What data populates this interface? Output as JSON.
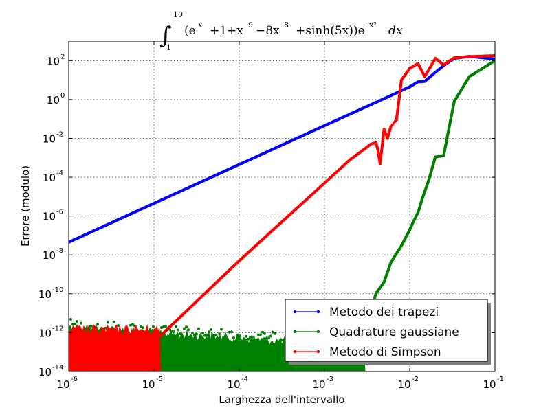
{
  "chart_data": {
    "type": "line",
    "title": {
      "integral": "∫",
      "upper": "10",
      "lower": "1",
      "integrand": "(e",
      "exp_x": "x",
      "mid": "+1+x",
      "exp_9": "9",
      "mid2": "−8x",
      "exp_8": "8",
      "tail": "+sinh(5x))e",
      "exp_tail": "−x²",
      "dx": "dx"
    },
    "xlabel": "Larghezza dell'intervallo",
    "ylabel": "Errore (modulo)",
    "x_scale": "log",
    "y_scale": "log",
    "xlim": [
      1e-06,
      0.1
    ],
    "ylim": [
      1e-14,
      1000
    ],
    "grid": true,
    "legend_position": "lower-right",
    "x_ticks": [
      {
        "base": "10",
        "exp": "-6"
      },
      {
        "base": "10",
        "exp": "-5"
      },
      {
        "base": "10",
        "exp": "-4"
      },
      {
        "base": "10",
        "exp": "-3"
      },
      {
        "base": "10",
        "exp": "-2"
      },
      {
        "base": "10",
        "exp": "-1"
      }
    ],
    "y_ticks": [
      {
        "base": "10",
        "exp": "-14"
      },
      {
        "base": "10",
        "exp": "-12"
      },
      {
        "base": "10",
        "exp": "-10"
      },
      {
        "base": "10",
        "exp": "-8"
      },
      {
        "base": "10",
        "exp": "-6"
      },
      {
        "base": "10",
        "exp": "-4"
      },
      {
        "base": "10",
        "exp": "-2"
      },
      {
        "base": "10",
        "exp": "0"
      },
      {
        "base": "10",
        "exp": "2"
      }
    ],
    "series": [
      {
        "name": "Metodo dei trapezi",
        "color": "#0000ff",
        "x": [
          1e-06,
          1e-05,
          0.0001,
          0.001,
          0.005,
          0.01,
          0.0125,
          0.015,
          0.02,
          0.025,
          0.0333,
          0.05,
          0.1
        ],
        "y": [
          4.5e-08,
          4.5e-06,
          0.00045,
          0.045,
          1.1,
          4.5,
          8,
          8.5,
          25,
          55,
          130,
          165,
          120
        ]
      },
      {
        "name": "Quadrature gaussiane",
        "color": "#008000",
        "x": [
          0.0035,
          0.004,
          0.005,
          0.006,
          0.007,
          0.008,
          0.009,
          0.01,
          0.011,
          0.0125,
          0.0143,
          0.0167,
          0.02,
          0.025,
          0.0333,
          0.05,
          0.1
        ],
        "y": [
          1e-11,
          1e-10,
          4e-10,
          4e-09,
          1.2e-08,
          3e-08,
          8e-08,
          2e-07,
          5e-07,
          1.5e-06,
          1e-05,
          7e-05,
          0.0011,
          0.0013,
          0.8,
          15,
          100
        ]
      },
      {
        "name": "Metodo di Simpson",
        "color": "#ff0000",
        "x": [
          1.2e-05,
          0.0001,
          0.001,
          0.002,
          0.003,
          0.0035,
          0.004,
          0.0042,
          0.0045,
          0.005,
          0.0055,
          0.006,
          0.0065,
          0.007,
          0.008,
          0.01,
          0.0125,
          0.015,
          0.02,
          0.025,
          0.0333,
          0.05,
          0.1
        ],
        "y": [
          7e-13,
          5e-09,
          5e-05,
          0.0008,
          0.003,
          0.005,
          0.006,
          0.003,
          0.0005,
          0.03,
          0.01,
          0.04,
          0.06,
          0.09,
          10,
          40,
          70,
          15,
          130,
          60,
          140,
          160,
          180
        ]
      }
    ],
    "noise_floor": {
      "red_range": [
        1e-06,
        1.2e-05
      ],
      "green_range": [
        1e-06,
        0.003
      ],
      "y_min": 1e-14
    }
  }
}
